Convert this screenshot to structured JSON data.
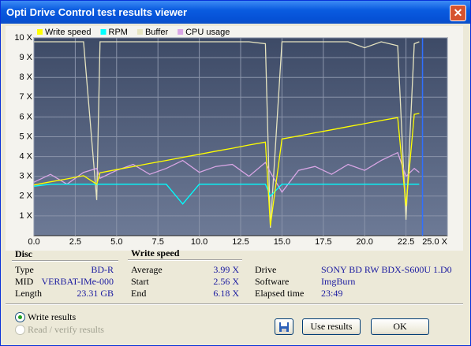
{
  "window": {
    "title": "Opti Drive Control test results viewer"
  },
  "chart_data": {
    "type": "line",
    "x": [
      0,
      1,
      2,
      3,
      3.8,
      4,
      5,
      6,
      7,
      8,
      9,
      10,
      11,
      12,
      13,
      14,
      14.3,
      15,
      16,
      17,
      18,
      19,
      20,
      21,
      22,
      22.5,
      23,
      23.3
    ],
    "series": [
      {
        "name": "Write speed",
        "color": "#ffff00",
        "values": [
          2.56,
          2.72,
          2.87,
          3.03,
          2.6,
          3.18,
          3.34,
          3.49,
          3.65,
          3.8,
          3.96,
          4.11,
          4.27,
          4.42,
          4.58,
          4.73,
          0.5,
          4.89,
          5.04,
          5.2,
          5.35,
          5.51,
          5.66,
          5.82,
          5.97,
          1.5,
          6.13,
          6.18
        ]
      },
      {
        "name": "RPM",
        "color": "#00ffff",
        "values": [
          2.5,
          2.6,
          2.6,
          2.6,
          2.6,
          2.6,
          2.6,
          2.6,
          2.6,
          2.6,
          1.6,
          2.6,
          2.6,
          2.6,
          2.6,
          2.6,
          2.0,
          2.6,
          2.6,
          2.6,
          2.6,
          2.6,
          2.6,
          2.6,
          2.6,
          2.6,
          2.6,
          2.6
        ]
      },
      {
        "name": "Buffer",
        "color": "#e6e4c0",
        "values": [
          9.8,
          9.8,
          9.8,
          9.8,
          1.8,
          9.8,
          9.8,
          9.8,
          9.8,
          9.8,
          9.8,
          9.8,
          9.8,
          9.8,
          9.8,
          9.7,
          0.4,
          9.8,
          9.8,
          9.8,
          9.8,
          9.8,
          9.5,
          9.8,
          9.6,
          0.8,
          9.7,
          9.8
        ]
      },
      {
        "name": "CPU usage",
        "color": "#d9a6e6",
        "values": [
          2.7,
          3.1,
          2.6,
          3.2,
          3.4,
          2.9,
          3.3,
          3.6,
          3.1,
          3.4,
          3.8,
          3.2,
          3.5,
          3.6,
          3.0,
          3.7,
          3.2,
          2.2,
          3.3,
          3.5,
          3.1,
          3.6,
          3.3,
          3.8,
          4.2,
          3.0,
          3.4,
          3.2
        ]
      }
    ],
    "xlim": [
      0,
      25
    ],
    "xticks": [
      {
        "value": 0,
        "label": "0.0"
      },
      2.5,
      {
        "value": 5,
        "label": "5.0"
      },
      7.5,
      {
        "value": 10,
        "label": "10.0"
      },
      12.5,
      {
        "value": 15,
        "label": "15.0"
      },
      17.5,
      {
        "value": 20,
        "label": "20.0"
      },
      22.5,
      {
        "value": 25,
        "label": "25.0 X"
      }
    ],
    "ylim": [
      0,
      10
    ],
    "yticks": [
      {
        "value": 1,
        "label": "1 X"
      },
      {
        "value": 2,
        "label": "2 X"
      },
      {
        "value": 3,
        "label": "3 X"
      },
      {
        "value": 4,
        "label": "4 X"
      },
      {
        "value": 5,
        "label": "5 X"
      },
      {
        "value": 6,
        "label": "6 X"
      },
      {
        "value": 7,
        "label": "7 X"
      },
      {
        "value": 8,
        "label": "8 X"
      },
      {
        "value": 9,
        "label": "9 X"
      },
      {
        "value": 10,
        "label": "10 X"
      }
    ],
    "grid": true
  },
  "disc": {
    "heading": "Disc",
    "rows": [
      [
        "Type",
        "BD-R"
      ],
      [
        "MID",
        "VERBAT-IMe-000"
      ],
      [
        "Length",
        "23.31 GB"
      ]
    ]
  },
  "write_speed": {
    "heading": "Write speed",
    "rows": [
      [
        "Average",
        "3.99 X"
      ],
      [
        "Start",
        "2.56 X"
      ],
      [
        "End",
        "6.18 X"
      ]
    ]
  },
  "drive_info": {
    "rows": [
      [
        "Drive",
        "SONY BD  RW BDX-S600U 1.D0"
      ],
      [
        "Software",
        "ImgBurn"
      ],
      [
        "Elapsed time",
        "23:49"
      ]
    ]
  },
  "options": [
    "Write results",
    "Read / verify results"
  ],
  "buttons": [
    "Use results",
    "OK"
  ]
}
